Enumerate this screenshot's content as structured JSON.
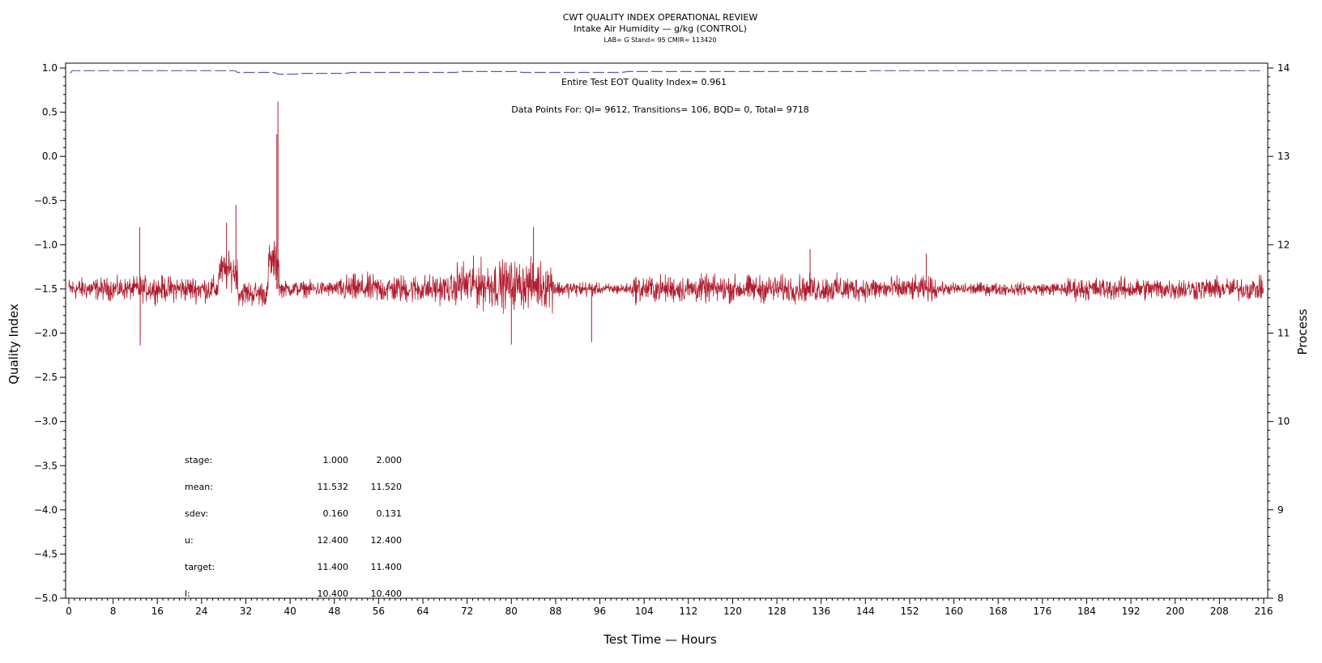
{
  "chart_data": {
    "type": "line",
    "title": "CWT QUALITY INDEX OPERATIONAL REVIEW",
    "subtitle": "Intake Air Humidity — g/kg (CONTROL)",
    "subtitle2": "LAB= G Stand= 95 CMIR= 113420",
    "xlabel": "Test Time — Hours",
    "ylabel_left": "Quality Index",
    "ylabel_right": "Process",
    "xlim": [
      0,
      216
    ],
    "ylim_left": [
      -5.0,
      1.0
    ],
    "ylim_right": [
      8,
      14
    ],
    "x_ticks": [
      "0",
      "8",
      "16",
      "24",
      "32",
      "40",
      "48",
      "56",
      "64",
      "72",
      "80",
      "88",
      "96",
      "104",
      "112",
      "120",
      "128",
      "136",
      "144",
      "152",
      "160",
      "168",
      "176",
      "184",
      "192",
      "200",
      "208",
      "216"
    ],
    "y_left_ticks": [
      "1.0",
      "0.5",
      "0.0",
      "−0.5",
      "−1.0",
      "−1.5",
      "−2.0",
      "−2.5",
      "−3.0",
      "−3.5",
      "−4.0",
      "−4.5",
      "−5.0"
    ],
    "y_right_ticks": [
      "14",
      "13",
      "12",
      "11",
      "10",
      "9",
      "8"
    ],
    "annotations": {
      "eot": "Entire Test EOT Quality Index=   0.961",
      "datapoints": "Data Points For: QI=  9612, Transitions=   106, BQD=     0, Total=  9718"
    },
    "stats": {
      "rows": [
        {
          "label": "stage:",
          "v1": "1.000",
          "v2": "2.000"
        },
        {
          "label": "mean:",
          "v1": "11.532",
          "v2": "11.520"
        },
        {
          "label": "sdev:",
          "v1": "0.160",
          "v2": "0.131"
        },
        {
          "label": "u:",
          "v1": "12.400",
          "v2": "12.400"
        },
        {
          "label": "target:",
          "v1": "11.400",
          "v2": "11.400"
        },
        {
          "label": "l:",
          "v1": "10.400",
          "v2": "10.400"
        }
      ]
    },
    "series": [
      {
        "color": "#b01c2e",
        "axis": "right",
        "style": "solid",
        "segments": [
          {
            "start": 0,
            "end": 12,
            "center": 11.5,
            "amp": 0.14
          },
          {
            "start": 12,
            "end": 27,
            "center": 11.5,
            "amp": 0.16
          },
          {
            "start": 27,
            "end": 30.5,
            "center": 11.7,
            "amp": 0.22
          },
          {
            "start": 30.5,
            "end": 36,
            "center": 11.45,
            "amp": 0.16
          },
          {
            "start": 36,
            "end": 38,
            "center": 11.8,
            "amp": 0.25
          },
          {
            "start": 38,
            "end": 49,
            "center": 11.5,
            "amp": 0.1
          },
          {
            "start": 49,
            "end": 70,
            "center": 11.5,
            "amp": 0.18
          },
          {
            "start": 70,
            "end": 88,
            "center": 11.55,
            "amp": 0.3
          },
          {
            "start": 88,
            "end": 95,
            "center": 11.5,
            "amp": 0.1
          },
          {
            "start": 95,
            "end": 102,
            "center": 11.5,
            "amp": 0.07
          },
          {
            "start": 102,
            "end": 141,
            "center": 11.5,
            "amp": 0.17
          },
          {
            "start": 141,
            "end": 157,
            "center": 11.5,
            "amp": 0.15
          },
          {
            "start": 157,
            "end": 180,
            "center": 11.5,
            "amp": 0.08
          },
          {
            "start": 180,
            "end": 216,
            "center": 11.5,
            "amp": 0.14
          }
        ],
        "spikes": [
          {
            "x": 12.8,
            "y": 12.2
          },
          {
            "x": 12.9,
            "y": 10.86
          },
          {
            "x": 28.5,
            "y": 12.25
          },
          {
            "x": 30.2,
            "y": 12.45
          },
          {
            "x": 37.6,
            "y": 13.25
          },
          {
            "x": 37.8,
            "y": 13.62
          },
          {
            "x": 94.5,
            "y": 10.9
          },
          {
            "x": 134,
            "y": 11.95
          },
          {
            "x": 155,
            "y": 11.9
          },
          {
            "x": 80,
            "y": 10.87
          },
          {
            "x": 84,
            "y": 12.2
          }
        ]
      },
      {
        "color": "#5a5ab4",
        "axis": "left",
        "style": "dashed",
        "points": [
          [
            0.3,
            0.94
          ],
          [
            0.6,
            0.97
          ],
          [
            30,
            0.97
          ],
          [
            30.5,
            0.95
          ],
          [
            37,
            0.95
          ],
          [
            38,
            0.93
          ],
          [
            41,
            0.93
          ],
          [
            42,
            0.94
          ],
          [
            50,
            0.94
          ],
          [
            51,
            0.95
          ],
          [
            70,
            0.95
          ],
          [
            71,
            0.96
          ],
          [
            81,
            0.96
          ],
          [
            82,
            0.95
          ],
          [
            100,
            0.95
          ],
          [
            101,
            0.96
          ],
          [
            144,
            0.96
          ],
          [
            145,
            0.97
          ],
          [
            216,
            0.97
          ]
        ]
      }
    ]
  }
}
